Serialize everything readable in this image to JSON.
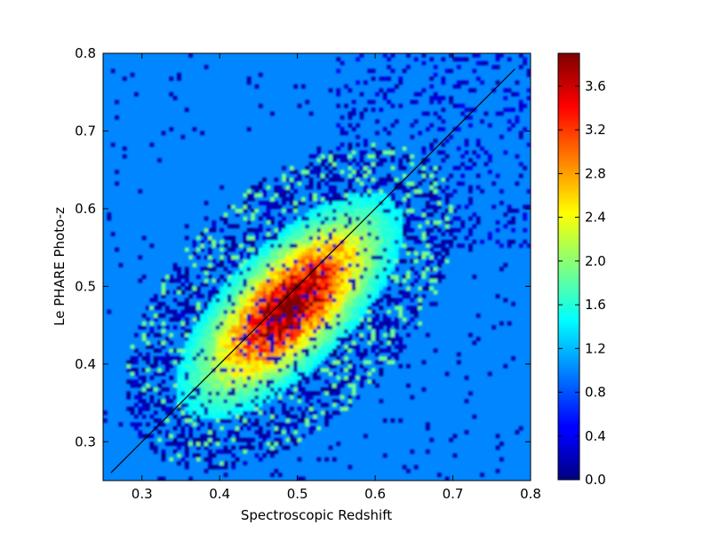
{
  "chart_data": {
    "type": "heatmap",
    "title": "",
    "xlabel": "Spectroscopic Redshift",
    "ylabel": "Le PHARE Photo-z",
    "xlim": [
      0.25,
      0.8
    ],
    "ylim": [
      0.25,
      0.8
    ],
    "x_ticks": [
      "0.3",
      "0.4",
      "0.5",
      "0.6",
      "0.7",
      "0.8"
    ],
    "y_ticks": [
      "0.3",
      "0.4",
      "0.5",
      "0.6",
      "0.7",
      "0.8"
    ],
    "colorbar": {
      "colormap": "jet",
      "range": [
        0.0,
        3.9
      ],
      "ticks": [
        "0.0",
        "0.4",
        "0.8",
        "1.2",
        "1.6",
        "2.0",
        "2.4",
        "2.8",
        "3.2",
        "3.6"
      ]
    },
    "background_value": 1.0,
    "density_peak": {
      "x": 0.49,
      "y": 0.475,
      "value": 3.9
    },
    "reference_line": {
      "x": [
        0.26,
        0.78
      ],
      "y": [
        0.26,
        0.78
      ],
      "color": "#000000"
    },
    "grid": false
  }
}
